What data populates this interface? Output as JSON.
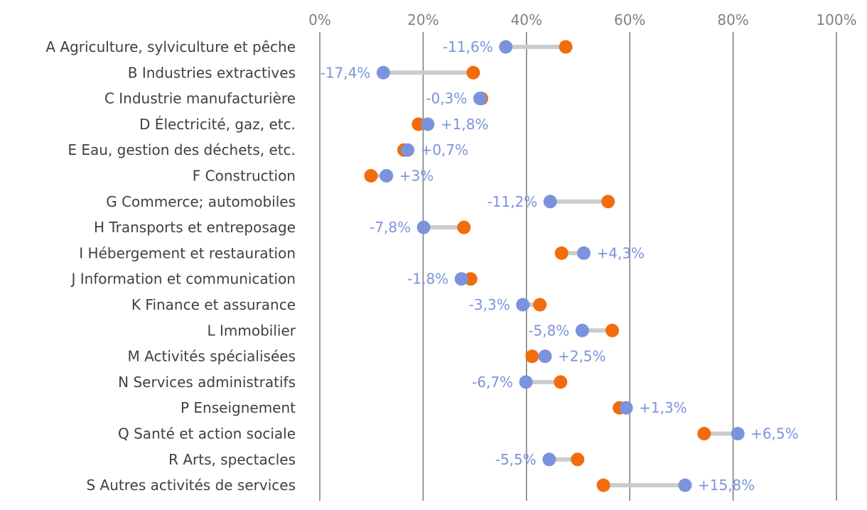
{
  "chart_data": {
    "type": "dumbbell",
    "title": "",
    "xlabel": "",
    "ylabel": "",
    "xlim": [
      0,
      100
    ],
    "x_ticks": [
      0,
      20,
      40,
      60,
      80,
      100
    ],
    "x_tick_labels": [
      "0%",
      "20%",
      "40%",
      "60%",
      "80%",
      "100%"
    ],
    "grid": true,
    "colors": {
      "start": "#f26c0c",
      "end": "#7b93dc",
      "connector": "#cccccc",
      "grid": "#808080",
      "label": "#7b93dc"
    },
    "series": [
      {
        "name": "start",
        "color": "#f26c0c"
      },
      {
        "name": "end",
        "color": "#7b93dc"
      }
    ],
    "categories": [
      "A Agriculture, sylviculture et pêche",
      "B Industries extractives",
      "C Industrie manufacturière",
      "D Électricité, gaz, etc.",
      "E Eau, gestion des déchets, etc.",
      "F Construction",
      "G Commerce; automobiles",
      "H Transports et entreposage",
      "I Hébergement et restauration",
      "J Information et communication",
      "K Finance et assurance",
      "L Immobilier",
      "M Activités spécialisées",
      "N Services administratifs",
      "P Enseignement",
      "Q Santé et action sociale",
      "R Arts, spectacles",
      "S Autres activités de services"
    ],
    "start_values": [
      47.6,
      29.7,
      31.3,
      19.1,
      16.3,
      9.9,
      55.8,
      27.9,
      46.8,
      29.2,
      42.6,
      56.6,
      41.1,
      46.6,
      58.0,
      74.4,
      49.9,
      54.9
    ],
    "end_values": [
      36.0,
      12.3,
      31.0,
      20.9,
      17.0,
      12.9,
      44.6,
      20.1,
      51.1,
      27.4,
      39.3,
      50.8,
      43.6,
      39.9,
      59.3,
      80.9,
      44.4,
      70.7
    ],
    "deltas": [
      "-11,6%",
      "-17,4%",
      "-0,3%",
      "+1,8%",
      "+0,7%",
      "+3%",
      "-11,2%",
      "-7,8%",
      "+4,3%",
      "-1,8%",
      "-3,3%",
      "-5,8%",
      "+2,5%",
      "-6,7%",
      "+1,3%",
      "+6,5%",
      "-5,5%",
      "+15,8%"
    ]
  }
}
